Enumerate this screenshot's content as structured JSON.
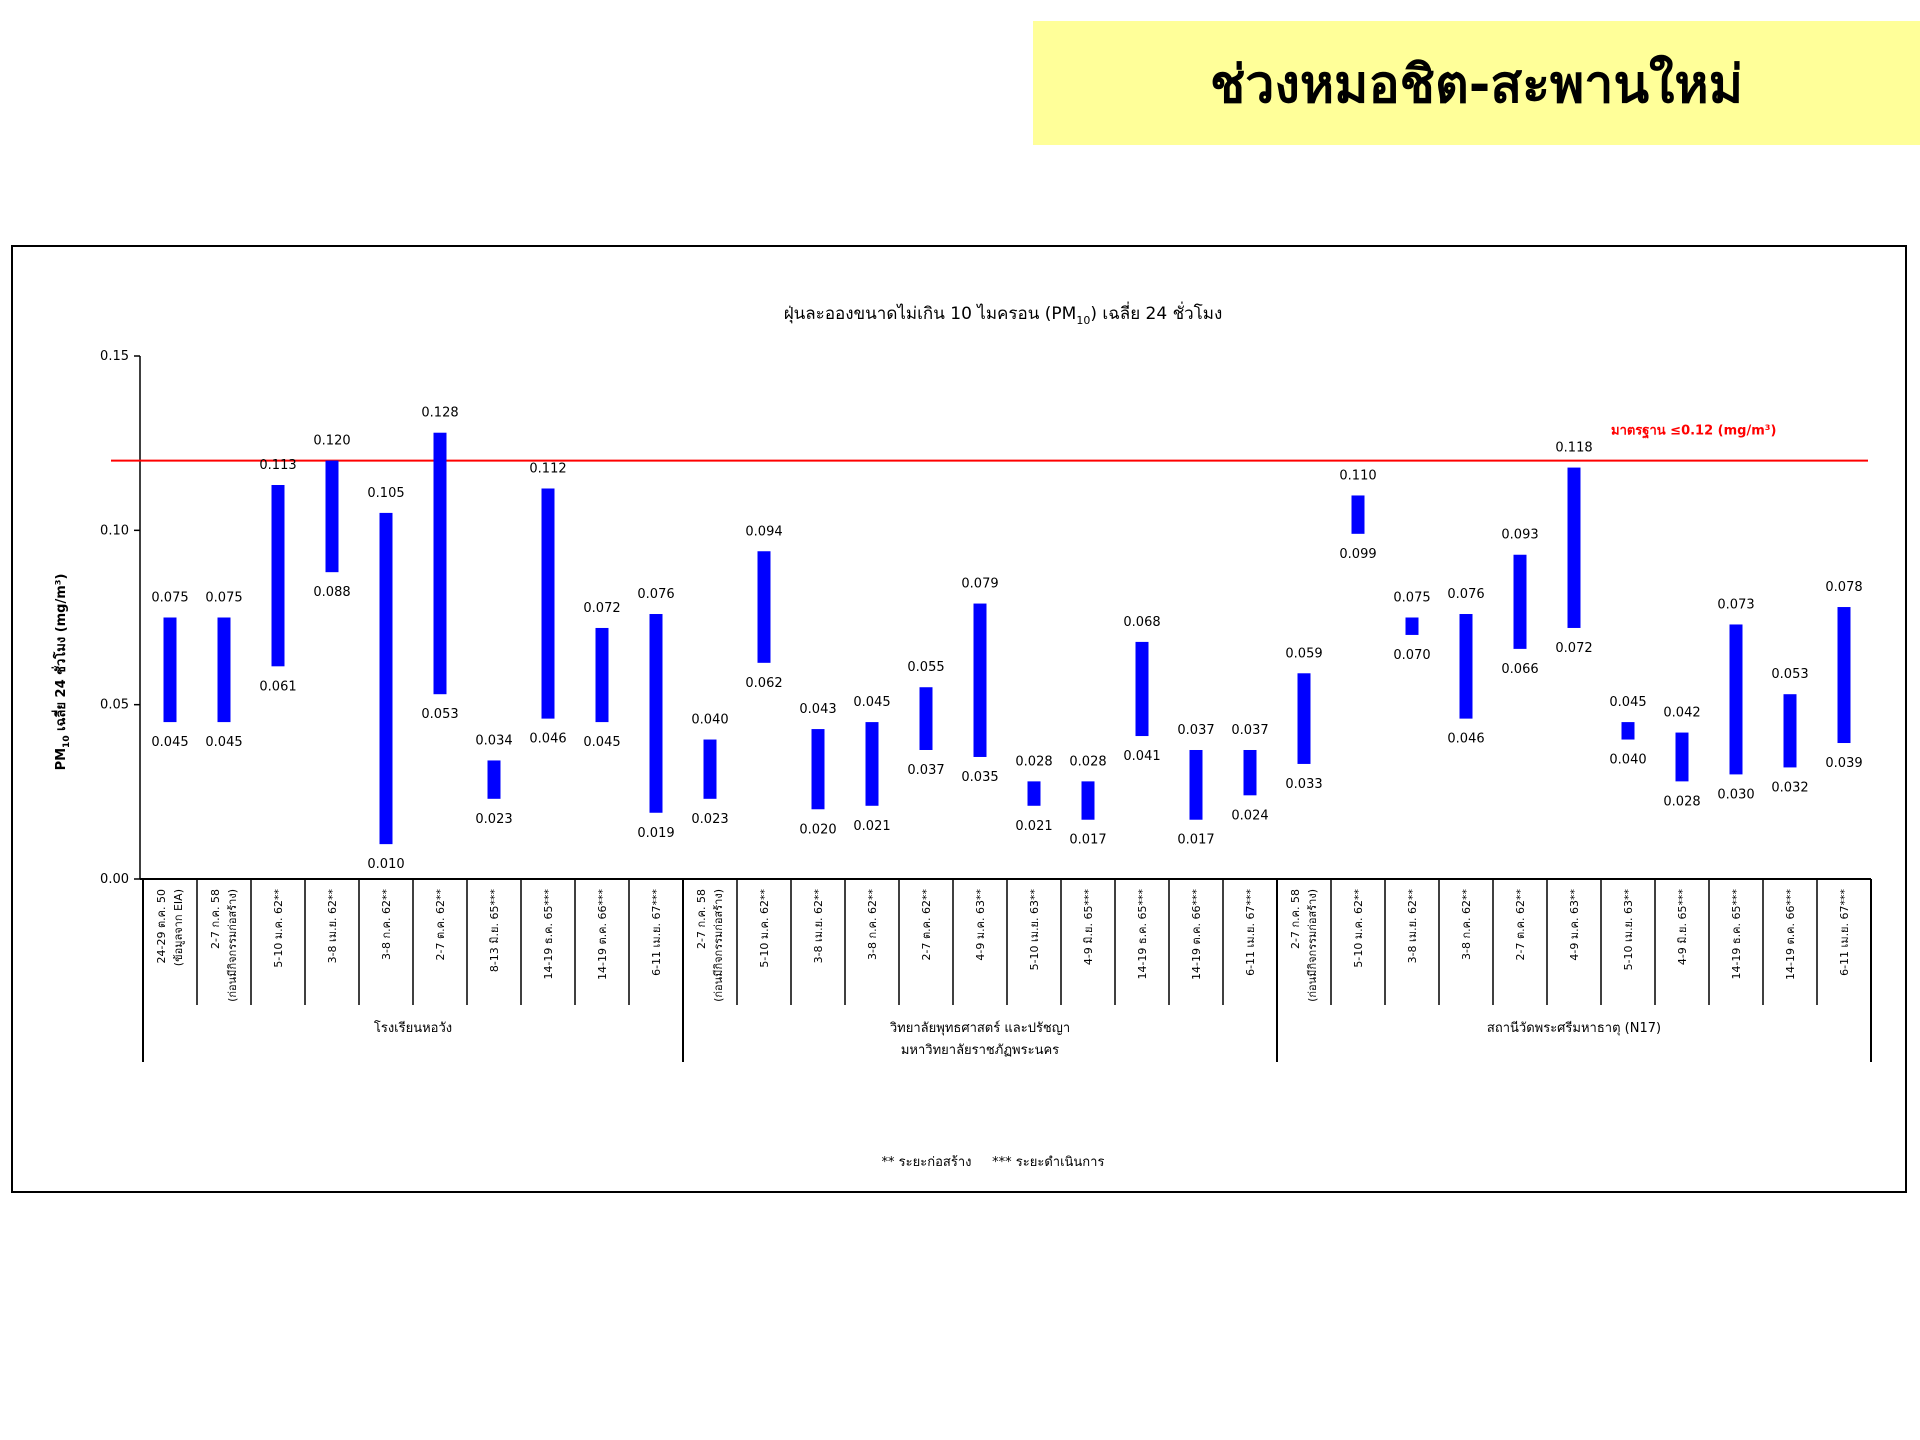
{
  "page_title": "ช่วงหมอชิต-สะพานใหม่",
  "chart_data": {
    "type": "floating-bar",
    "title_main": "ฝุ่นละอองขนาดไม่เกิน 10 ไมครอน (PM",
    "title_sub": "10",
    "title_end": ") เฉลี่ย 24 ชั่วโมง",
    "ylabel_main": "PM",
    "ylabel_sub": "10",
    "ylabel_end": " เฉลี่ย 24 ชั่วโมง (mg/m³)",
    "ylim": [
      0,
      0.15
    ],
    "yticks": [
      "0.00",
      "0.05",
      "0.10",
      "0.15"
    ],
    "yticks_values": [
      0,
      0.05,
      0.1,
      0.15
    ],
    "bar_color": "#0000ff",
    "standard": {
      "value": 0.12,
      "label": "มาตรฐาน ≤0.12 (mg/m³)",
      "color": "#ff0000"
    },
    "categories": [
      [
        "24-29 ต.ค. 50",
        "(ข้อมูลจาก EIA)"
      ],
      [
        "2-7 ก.ค. 58",
        "(ก่อนมีกิจกรรมก่อสร้าง)"
      ],
      [
        "5-10 ม.ค. 62**"
      ],
      [
        "3-8 เม.ย. 62**"
      ],
      [
        "3-8 ก.ค. 62**"
      ],
      [
        "2-7 ต.ค. 62**"
      ],
      [
        "8-13 มิ.ย. 65***"
      ],
      [
        "14-19 ธ.ค. 65***"
      ],
      [
        "14-19 ต.ค. 66***"
      ],
      [
        "6-11 เม.ย. 67***"
      ],
      [
        "2-7 ก.ค. 58",
        "(ก่อนมีกิจกรรมก่อสร้าง)"
      ],
      [
        "5-10 ม.ค. 62**"
      ],
      [
        "3-8 เม.ย. 62**"
      ],
      [
        "3-8 ก.ค. 62**"
      ],
      [
        "2-7 ต.ค. 62**"
      ],
      [
        "4-9 ม.ค. 63**"
      ],
      [
        "5-10 เม.ย. 63**"
      ],
      [
        "4-9 มิ.ย. 65***"
      ],
      [
        "14-19 ธ.ค. 65***"
      ],
      [
        "14-19 ต.ค. 66***"
      ],
      [
        "6-11 เม.ย. 67***"
      ],
      [
        "2-7 ก.ค. 58",
        "(ก่อนมีกิจกรรมก่อสร้าง)"
      ],
      [
        "5-10 ม.ค. 62**"
      ],
      [
        "3-8 เม.ย. 62**"
      ],
      [
        "3-8 ก.ค. 62**"
      ],
      [
        "2-7 ต.ค. 62**"
      ],
      [
        "4-9 ม.ค. 63**"
      ],
      [
        "5-10 เม.ย. 63**"
      ],
      [
        "4-9 มิ.ย. 65***"
      ],
      [
        "14-19 ธ.ค. 65***"
      ],
      [
        "14-19 ต.ค. 66***"
      ],
      [
        "6-11 เม.ย. 67***"
      ]
    ],
    "low_labels": [
      "0.045",
      "0.045",
      "0.061",
      "0.088",
      "0.010",
      "0.053",
      "0.023",
      "0.046",
      "0.045",
      "0.019",
      "0.023",
      "0.062",
      "0.020",
      "0.021",
      "0.037",
      "0.035",
      "0.021",
      "0.017",
      "0.041",
      "0.017",
      "0.024",
      "0.033",
      "0.099",
      "0.070",
      "0.046",
      "0.066",
      "0.072",
      "0.040",
      "0.028",
      "0.030",
      "0.032",
      "0.039"
    ],
    "high_labels": [
      "0.075",
      "0.075",
      "0.113",
      "0.120",
      "0.105",
      "0.128",
      "0.034",
      "0.112",
      "0.072",
      "0.076",
      "0.040",
      "0.094",
      "0.043",
      "0.045",
      "0.055",
      "0.079",
      "0.028",
      "0.028",
      "0.068",
      "0.037",
      "0.037",
      "0.059",
      "0.110",
      "0.075",
      "0.076",
      "0.093",
      "0.118",
      "0.045",
      "0.042",
      "0.073",
      "0.053",
      "0.078"
    ],
    "groups": [
      {
        "lines": [
          "โรงเรียนหอวัง"
        ],
        "start": 0,
        "end": 9
      },
      {
        "lines": [
          "วิทยาลัยพุทธศาสตร์ และปรัชญา",
          "มหาวิทยาลัยราชภัฏพระนคร"
        ],
        "start": 10,
        "end": 20
      },
      {
        "lines": [
          "สถานีวัดพระศรีมหาธาตุ (N17)"
        ],
        "start": 21,
        "end": 31
      }
    ],
    "footnote": "** ระยะก่อสร้าง     *** ระยะดำเนินการ"
  }
}
